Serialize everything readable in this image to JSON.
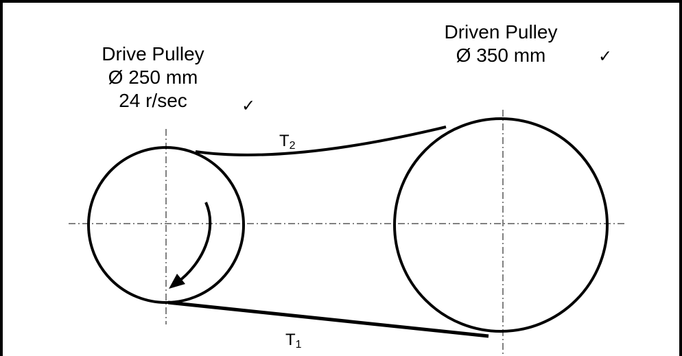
{
  "drive_pulley": {
    "title": "Drive Pulley",
    "diameter": "Ø 250 mm",
    "speed": "24 r/sec",
    "check": "✓"
  },
  "driven_pulley": {
    "title": "Driven Pulley",
    "diameter": "Ø 350 mm",
    "check": "✓"
  },
  "tensions": {
    "tight_side": {
      "symbol": "T",
      "subscript": "2"
    },
    "slack_side": {
      "symbol": "T",
      "subscript": "1"
    }
  }
}
